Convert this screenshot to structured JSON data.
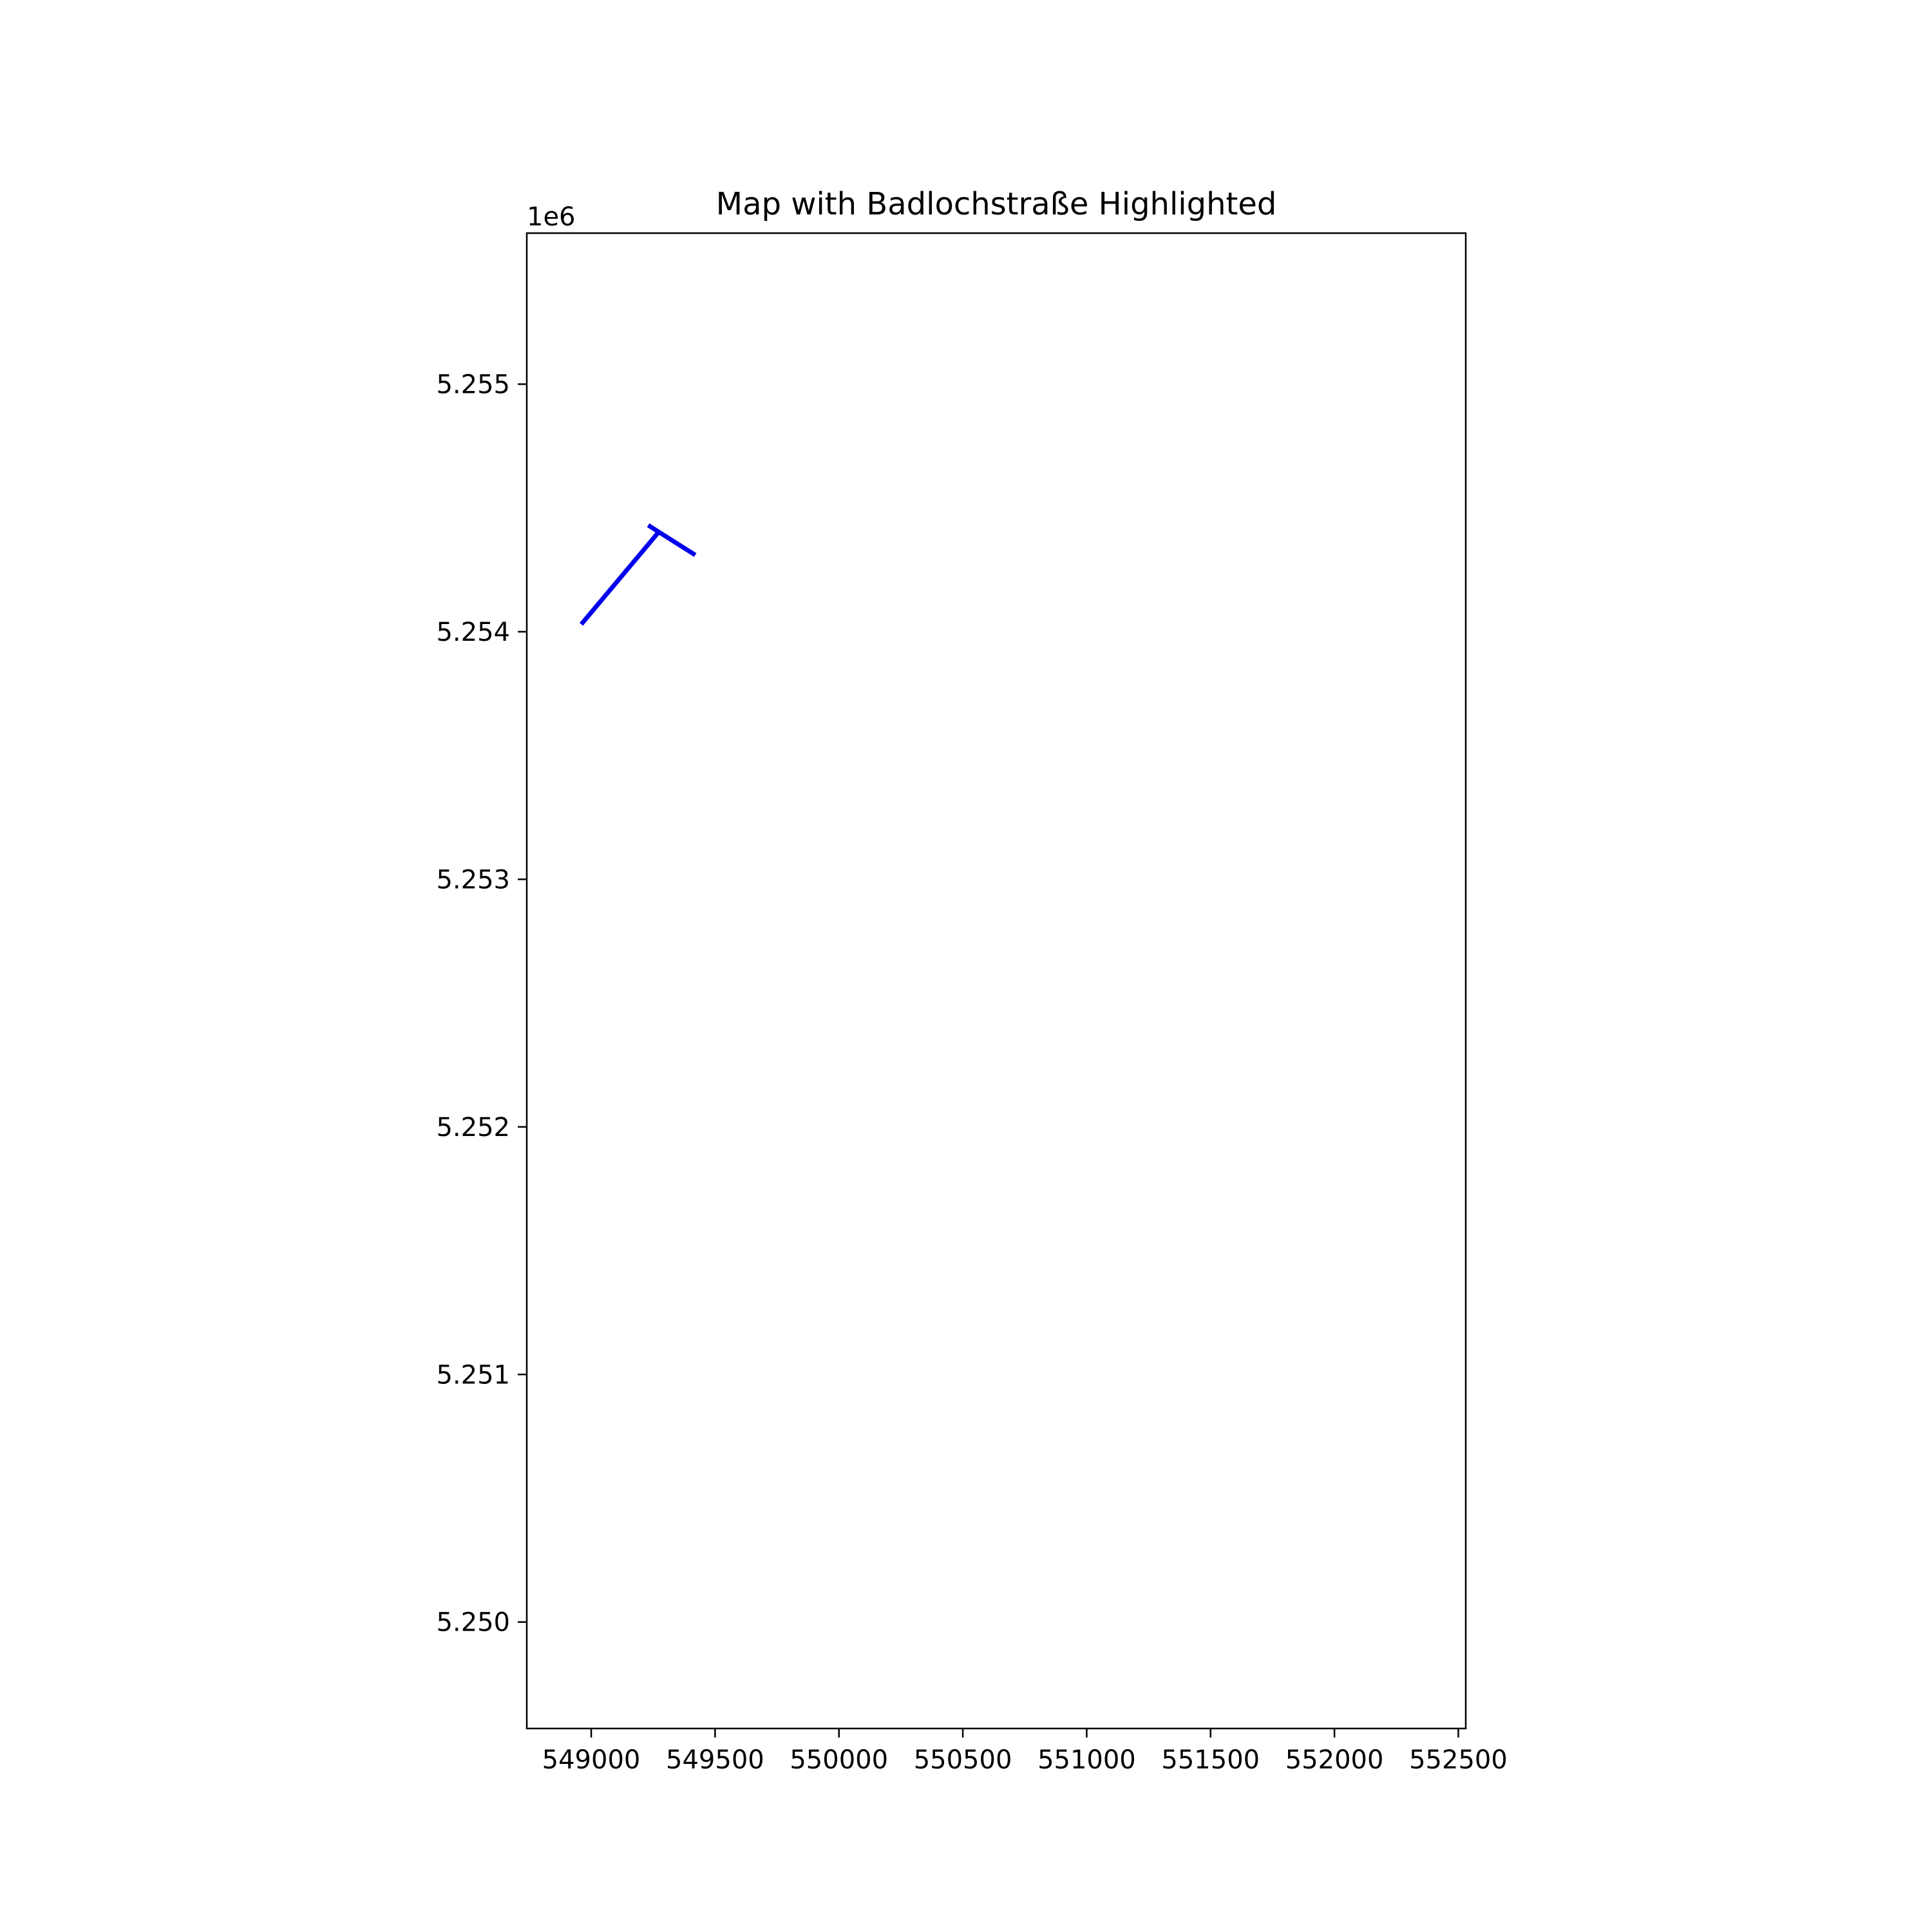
{
  "title": "Map with Badlochstraße Highlighted",
  "chart_data": {
    "type": "map-lines",
    "title": "Map with Badlochstraße Highlighted",
    "xlabel": "",
    "ylabel": "",
    "y_offset_label": "1e6",
    "xlim": [
      548740,
      552530
    ],
    "ylim": [
      5249570,
      5255610
    ],
    "x_ticks": [
      549000,
      549500,
      550000,
      550500,
      551000,
      551500,
      552000,
      552500
    ],
    "x_tick_labels": [
      "549000",
      "549500",
      "550000",
      "550500",
      "551000",
      "551500",
      "552000",
      "552500"
    ],
    "y_ticks": [
      5250000,
      5251000,
      5252000,
      5253000,
      5254000,
      5255000
    ],
    "y_tick_labels": [
      "5.250",
      "5.251",
      "5.252",
      "5.253",
      "5.254",
      "5.255"
    ],
    "grid": false,
    "line_color": "#0000ee",
    "series": [
      {
        "points": [
          [
            548960,
            5254030
          ],
          [
            549270,
            5254400
          ]
        ]
      },
      {
        "points": [
          [
            549230,
            5254430
          ],
          [
            549420,
            5254310
          ]
        ]
      }
    ]
  }
}
